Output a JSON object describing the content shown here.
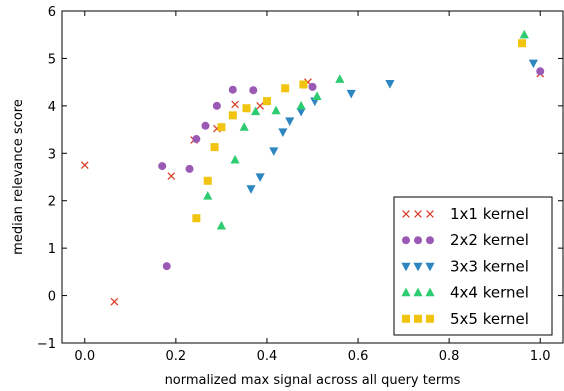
{
  "chart_data": {
    "type": "scatter",
    "title": "",
    "xlabel": "normalized max signal across all query terms",
    "ylabel": "median relevance score",
    "xlim": [
      -0.05,
      1.05
    ],
    "ylim": [
      -1,
      6
    ],
    "xticks": [
      0.0,
      0.2,
      0.4,
      0.6,
      0.8,
      1.0
    ],
    "xtick_labels": [
      "0.0",
      "0.2",
      "0.4",
      "0.6",
      "0.8",
      "1.0"
    ],
    "yticks": [
      -1,
      0,
      1,
      2,
      3,
      4,
      5,
      6
    ],
    "ytick_labels": [
      "−1",
      "0",
      "1",
      "2",
      "3",
      "4",
      "5",
      "6"
    ],
    "grid": false,
    "legend_position": "bottom-right",
    "series": [
      {
        "name": "1x1 kernel",
        "marker": "x",
        "color": "#d9412b",
        "points": [
          [
            0.0,
            2.75
          ],
          [
            0.065,
            -0.13
          ],
          [
            0.19,
            2.52
          ],
          [
            0.24,
            3.28
          ],
          [
            0.29,
            3.52
          ],
          [
            0.33,
            4.03
          ],
          [
            0.385,
            4.0
          ],
          [
            0.49,
            4.5
          ],
          [
            1.0,
            4.68
          ]
        ]
      },
      {
        "name": "2x2 kernel",
        "marker": "circle",
        "color": "#9b59b6",
        "points": [
          [
            0.18,
            0.62
          ],
          [
            0.17,
            2.73
          ],
          [
            0.23,
            2.67
          ],
          [
            0.245,
            3.3
          ],
          [
            0.265,
            3.58
          ],
          [
            0.29,
            4.0
          ],
          [
            0.325,
            4.34
          ],
          [
            0.37,
            4.33
          ],
          [
            0.5,
            4.4
          ],
          [
            1.0,
            4.73
          ]
        ]
      },
      {
        "name": "3x3 kernel",
        "marker": "triangle-down",
        "color": "#2e86c1",
        "points": [
          [
            0.365,
            2.25
          ],
          [
            0.385,
            2.5
          ],
          [
            0.415,
            3.05
          ],
          [
            0.435,
            3.45
          ],
          [
            0.45,
            3.68
          ],
          [
            0.475,
            3.88
          ],
          [
            0.505,
            4.1
          ],
          [
            0.585,
            4.26
          ],
          [
            0.67,
            4.47
          ],
          [
            0.985,
            4.9
          ]
        ]
      },
      {
        "name": "4x4 kernel",
        "marker": "triangle-up",
        "color": "#2ecc71",
        "points": [
          [
            0.3,
            1.47
          ],
          [
            0.27,
            2.1
          ],
          [
            0.33,
            2.86
          ],
          [
            0.35,
            3.55
          ],
          [
            0.375,
            3.88
          ],
          [
            0.42,
            3.9
          ],
          [
            0.475,
            4.0
          ],
          [
            0.51,
            4.2
          ],
          [
            0.56,
            4.56
          ],
          [
            0.965,
            5.5
          ]
        ]
      },
      {
        "name": "5x5 kernel",
        "marker": "square",
        "color": "#f1c40f",
        "points": [
          [
            0.245,
            1.63
          ],
          [
            0.27,
            2.42
          ],
          [
            0.285,
            3.13
          ],
          [
            0.3,
            3.55
          ],
          [
            0.325,
            3.8
          ],
          [
            0.355,
            3.95
          ],
          [
            0.4,
            4.1
          ],
          [
            0.44,
            4.37
          ],
          [
            0.48,
            4.45
          ],
          [
            0.96,
            5.32
          ]
        ]
      }
    ]
  }
}
